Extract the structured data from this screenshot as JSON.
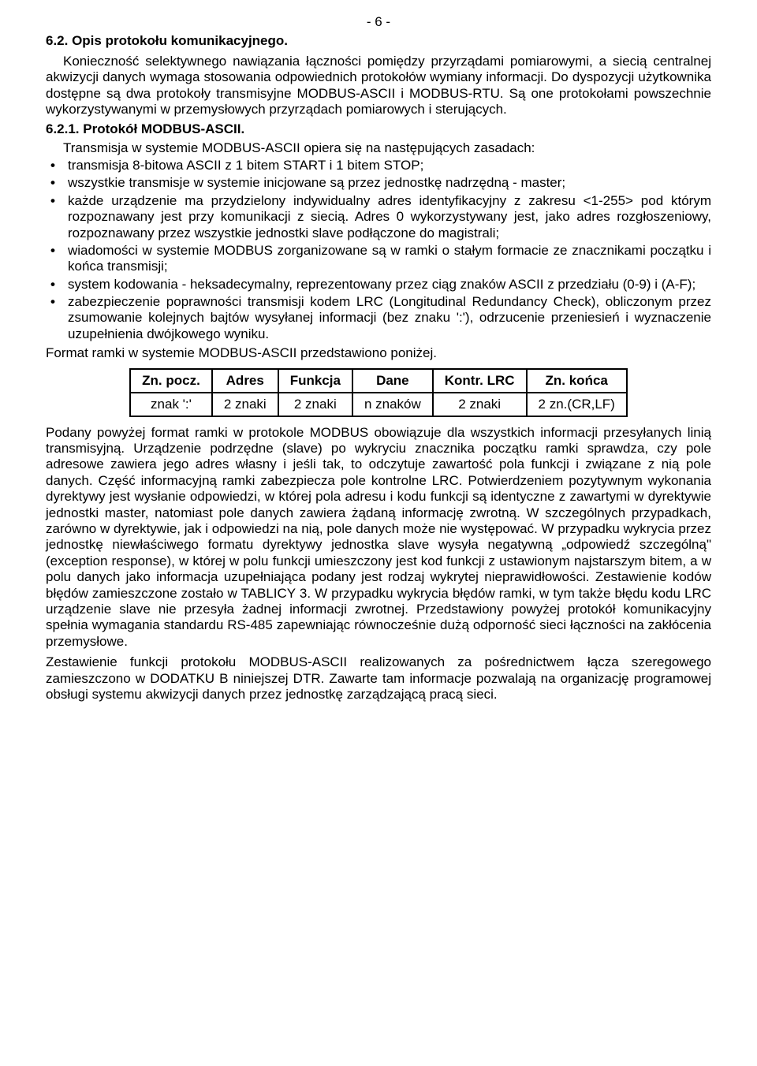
{
  "page_number": "- 6 -",
  "h62": "6.2. Opis protokołu komunikacyjnego.",
  "p1": "Konieczność selektywnego nawiązania łączności pomiędzy przyrządami pomiarowymi, a siecią centralnej akwizycji danych wymaga stosowania odpowiednich protokołów wymiany informacji. Do dyspozycji użytkownika dostępne są dwa protokoły transmisyjne MODBUS-ASCII i MODBUS-RTU. Są one protokołami powszechnie wykorzystywanymi w przemysłowych przyrządach pomiarowych i sterujących.",
  "h621": "6.2.1. Protokół MODBUS-ASCII.",
  "p2": "Transmisja w systemie MODBUS-ASCII opiera się na następujących zasadach:",
  "bullets": [
    "transmisja 8-bitowa ASCII z 1 bitem START i 1 bitem STOP;",
    "wszystkie transmisje w systemie inicjowane są przez jednostkę nadrzędną - master;",
    "każde urządzenie ma przydzielony indywidualny adres identyfikacyjny z zakresu <1-255> pod którym rozpoznawany jest przy komunikacji z siecią. Adres 0 wykorzystywany jest, jako adres rozgłoszeniowy, rozpoznawany przez wszystkie jednostki slave podłączone do magistrali;",
    "wiadomości w systemie MODBUS zorganizowane są w ramki o stałym formacie ze znacznikami początku i końca transmisji;",
    "system kodowania - heksadecymalny, reprezentowany przez ciąg znaków ASCII z przedziału (0-9) i (A-F);",
    "zabezpieczenie poprawności transmisji kodem LRC (Longitudinal Redundancy Check), obliczonym przez zsumowanie kolejnych bajtów wysyłanej informacji (bez znaku ':'), odrzucenie przeniesień i wyznaczenie uzupełnienia dwójkowego wyniku."
  ],
  "p3": "Format ramki w systemie MODBUS-ASCII przedstawiono poniżej.",
  "table": {
    "headers": [
      "Zn. pocz.",
      "Adres",
      "Funkcja",
      "Dane",
      "Kontr. LRC",
      "Zn. końca"
    ],
    "row": [
      "znak ':'",
      "2 znaki",
      "2 znaki",
      "n znaków",
      "2 znaki",
      "2 zn.(CR,LF)"
    ]
  },
  "p4": "Podany powyżej format ramki w protokole MODBUS obowiązuje dla wszystkich informacji przesyłanych linią transmisyjną. Urządzenie podrzędne (slave) po wykryciu znacznika początku ramki sprawdza, czy pole adresowe zawiera jego adres własny i jeśli tak, to odczytuje zawartość pola funkcji i związane z nią pole danych. Część informacyjną ramki zabezpiecza pole kontrolne LRC. Potwierdzeniem pozytywnym wykonania dyrektywy jest wysłanie odpowiedzi, w której pola adresu i kodu funkcji są identyczne z zawartymi w dyrektywie jednostki master, natomiast pole danych zawiera żądaną informację zwrotną. W szczególnych przypadkach, zarówno w dyrektywie, jak i odpowiedzi na nią, pole danych może nie występować. W przypadku wykrycia przez jednostkę niewłaściwego formatu dyrektywy jednostka slave wysyła negatywną „odpowiedź szczególną\" (exception response), w której w polu funkcji umieszczony jest kod funkcji z ustawionym najstarszym bitem, a w polu danych jako informacja uzupełniająca podany jest rodzaj wykrytej nieprawidłowości. Zestawienie kodów błędów zamieszczone zostało w TABLICY 3. W przypadku wykrycia błędów ramki, w tym także błędu kodu LRC urządzenie slave nie przesyła żadnej informacji zwrotnej. Przedstawiony powyżej protokół komunikacyjny spełnia wymagania standardu RS-485 zapewniając równocześnie dużą odporność sieci łączności na zakłócenia przemysłowe.",
  "p5": "Zestawienie funkcji protokołu MODBUS-ASCII realizowanych za pośrednictwem łącza szeregowego zamieszczono w DODATKU B niniejszej DTR. Zawarte tam informacje pozwalają na organizację programowej obsługi systemu akwizycji danych przez jednostkę zarządzającą pracą sieci."
}
